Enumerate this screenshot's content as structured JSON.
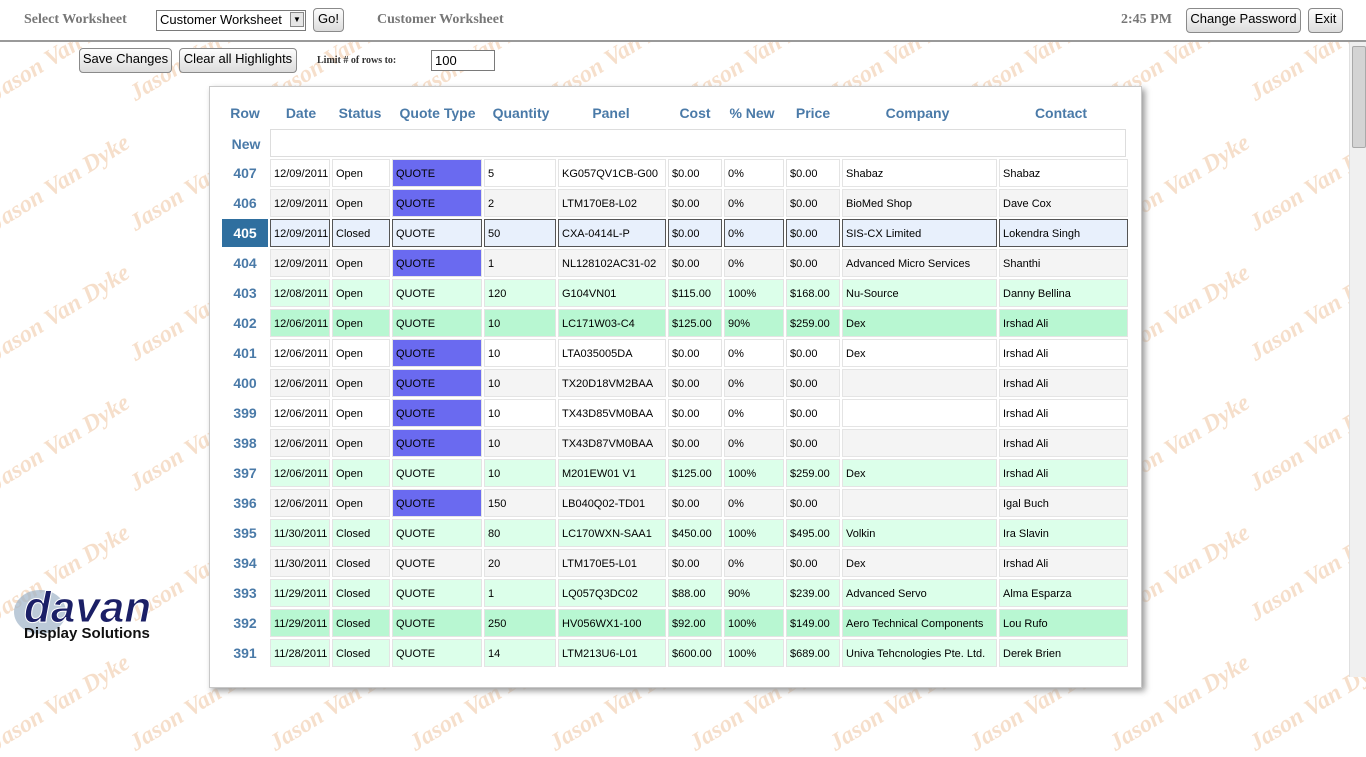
{
  "header": {
    "select_label": "Select Worksheet",
    "worksheet_selected": "Customer Worksheet",
    "go_label": "Go!",
    "worksheet_title": "Customer Worksheet",
    "time": "2:45 PM",
    "change_password_label": "Change Password",
    "exit_label": "Exit"
  },
  "toolbar": {
    "save_label": "Save Changes",
    "clear_label": "Clear all Highlights",
    "limit_label": "Limit # of rows to:",
    "limit_value": "100"
  },
  "table": {
    "columns": [
      "Row",
      "Date",
      "Status",
      "Quote Type",
      "Quantity",
      "Panel",
      "Cost",
      "% New",
      "Price",
      "Company",
      "Contact"
    ],
    "new_label": "New",
    "rows": [
      {
        "row": "407",
        "date": "12/09/2011",
        "status": "Open",
        "quote_type": "QUOTE",
        "quantity": "5",
        "panel": "KG057QV1CB-G00",
        "cost": "$0.00",
        "pct_new": "0%",
        "price": "$0.00",
        "company": "Shabaz",
        "contact": "Shabaz",
        "style": "violet"
      },
      {
        "row": "406",
        "date": "12/09/2011",
        "status": "Open",
        "quote_type": "QUOTE",
        "quantity": "2",
        "panel": "LTM170E8-L02",
        "cost": "$0.00",
        "pct_new": "0%",
        "price": "$0.00",
        "company": "BioMed Shop",
        "contact": "Dave Cox",
        "style": "violet"
      },
      {
        "row": "405",
        "date": "12/09/2011",
        "status": "Closed",
        "quote_type": "QUOTE",
        "quantity": "50",
        "panel": "CXA-0414L-P",
        "cost": "$0.00",
        "pct_new": "0%",
        "price": "$0.00",
        "company": "SIS-CX Limited",
        "contact": "Lokendra Singh",
        "style": "selected"
      },
      {
        "row": "404",
        "date": "12/09/2011",
        "status": "Open",
        "quote_type": "QUOTE",
        "quantity": "1",
        "panel": "NL128102AC31-02",
        "cost": "$0.00",
        "pct_new": "0%",
        "price": "$0.00",
        "company": "Advanced Micro Services",
        "contact": "Shanthi",
        "style": "violet"
      },
      {
        "row": "403",
        "date": "12/08/2011",
        "status": "Open",
        "quote_type": "QUOTE",
        "quantity": "120",
        "panel": "G104VN01",
        "cost": "$115.00",
        "pct_new": "100%",
        "price": "$168.00",
        "company": "Nu-Source",
        "contact": "Danny Bellina",
        "style": "green"
      },
      {
        "row": "402",
        "date": "12/06/2011",
        "status": "Open",
        "quote_type": "QUOTE",
        "quantity": "10",
        "panel": "LC171W03-C4",
        "cost": "$125.00",
        "pct_new": "90%",
        "price": "$259.00",
        "company": "Dex",
        "contact": "Irshad Ali",
        "style": "green2"
      },
      {
        "row": "401",
        "date": "12/06/2011",
        "status": "Open",
        "quote_type": "QUOTE",
        "quantity": "10",
        "panel": "LTA035005DA",
        "cost": "$0.00",
        "pct_new": "0%",
        "price": "$0.00",
        "company": "Dex",
        "contact": "Irshad Ali",
        "style": "violet"
      },
      {
        "row": "400",
        "date": "12/06/2011",
        "status": "Open",
        "quote_type": "QUOTE",
        "quantity": "10",
        "panel": "TX20D18VM2BAA",
        "cost": "$0.00",
        "pct_new": "0%",
        "price": "$0.00",
        "company": "",
        "contact": "Irshad Ali",
        "style": "violet"
      },
      {
        "row": "399",
        "date": "12/06/2011",
        "status": "Open",
        "quote_type": "QUOTE",
        "quantity": "10",
        "panel": "TX43D85VM0BAA",
        "cost": "$0.00",
        "pct_new": "0%",
        "price": "$0.00",
        "company": "",
        "contact": "Irshad Ali",
        "style": "violet"
      },
      {
        "row": "398",
        "date": "12/06/2011",
        "status": "Open",
        "quote_type": "QUOTE",
        "quantity": "10",
        "panel": "TX43D87VM0BAA",
        "cost": "$0.00",
        "pct_new": "0%",
        "price": "$0.00",
        "company": "",
        "contact": "Irshad Ali",
        "style": "violet"
      },
      {
        "row": "397",
        "date": "12/06/2011",
        "status": "Open",
        "quote_type": "QUOTE",
        "quantity": "10",
        "panel": "M201EW01 V1",
        "cost": "$125.00",
        "pct_new": "100%",
        "price": "$259.00",
        "company": "Dex",
        "contact": "Irshad Ali",
        "style": "green"
      },
      {
        "row": "396",
        "date": "12/06/2011",
        "status": "Open",
        "quote_type": "QUOTE",
        "quantity": "150",
        "panel": "LB040Q02-TD01",
        "cost": "$0.00",
        "pct_new": "0%",
        "price": "$0.00",
        "company": "",
        "contact": "Igal Buch",
        "style": "violet"
      },
      {
        "row": "395",
        "date": "11/30/2011",
        "status": "Closed",
        "quote_type": "QUOTE",
        "quantity": "80",
        "panel": "LC170WXN-SAA1",
        "cost": "$450.00",
        "pct_new": "100%",
        "price": "$495.00",
        "company": "Volkin",
        "contact": "Ira Slavin",
        "style": "green"
      },
      {
        "row": "394",
        "date": "11/30/2011",
        "status": "Closed",
        "quote_type": "QUOTE",
        "quantity": "20",
        "panel": "LTM170E5-L01",
        "cost": "$0.00",
        "pct_new": "0%",
        "price": "$0.00",
        "company": "Dex",
        "contact": "Irshad Ali",
        "style": "plain"
      },
      {
        "row": "393",
        "date": "11/29/2011",
        "status": "Closed",
        "quote_type": "QUOTE",
        "quantity": "1",
        "panel": "LQ057Q3DC02",
        "cost": "$88.00",
        "pct_new": "90%",
        "price": "$239.00",
        "company": "Advanced Servo",
        "contact": "Alma Esparza",
        "style": "green"
      },
      {
        "row": "392",
        "date": "11/29/2011",
        "status": "Closed",
        "quote_type": "QUOTE",
        "quantity": "250",
        "panel": "HV056WX1-100",
        "cost": "$92.00",
        "pct_new": "100%",
        "price": "$149.00",
        "company": "Aero Technical Components",
        "contact": "Lou Rufo",
        "style": "green2"
      },
      {
        "row": "391",
        "date": "11/28/2011",
        "status": "Closed",
        "quote_type": "QUOTE",
        "quantity": "14",
        "panel": "LTM213U6-L01",
        "cost": "$600.00",
        "pct_new": "100%",
        "price": "$689.00",
        "company": "Univa Tehcnologies Pte. Ltd.",
        "contact": "Derek Brien",
        "style": "green"
      }
    ]
  },
  "watermark_text": "Jason Van Dyke",
  "logo": {
    "brand": "davan",
    "tagline": "Display Solutions"
  },
  "colors": {
    "accent": "#4a7aa8",
    "quote_violet": "#6a6af0",
    "green_row": "#dcffea",
    "green_row_dark": "#b8f7d2",
    "selected_row": "#e8f0fc"
  }
}
